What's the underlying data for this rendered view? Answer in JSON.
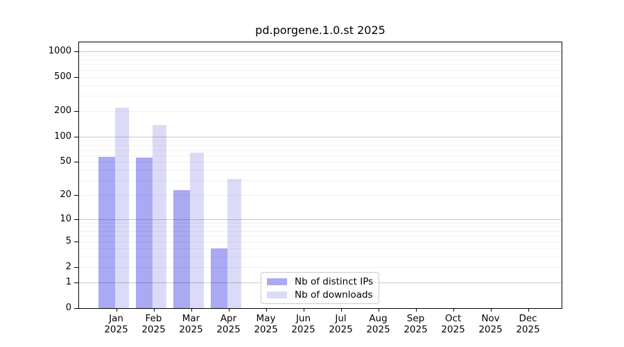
{
  "title": "pd.porgene.1.0.st 2025",
  "chart_data": {
    "type": "bar",
    "title": "pd.porgene.1.0.st 2025",
    "categories": [
      "Jan 2025",
      "Feb 2025",
      "Mar 2025",
      "Apr 2025",
      "May 2025",
      "Jun 2025",
      "Jul 2025",
      "Aug 2025",
      "Sep 2025",
      "Oct 2025",
      "Nov 2025",
      "Dec 2025"
    ],
    "series": [
      {
        "name": "Nb of distinct IPs",
        "color": "#a9a9f4",
        "values": [
          58,
          57,
          23,
          4,
          0,
          0,
          0,
          0,
          0,
          0,
          0,
          0
        ]
      },
      {
        "name": "Nb of downloads",
        "color": "#dbdbf8",
        "values": [
          220,
          136,
          64,
          31,
          0,
          0,
          0,
          0,
          0,
          0,
          0,
          0
        ]
      }
    ],
    "xlabel": "",
    "ylabel": "",
    "yscale": "log10(1+x)",
    "y_ticks": [
      0,
      1,
      2,
      5,
      10,
      20,
      50,
      100,
      200,
      500,
      1000
    ],
    "ylim": [
      0,
      1272
    ],
    "grid": "horizontal; faint lines at 2-9 per decade; decade lines 1,10,100,1000 emphasized; gridlines drawn over bars",
    "legend_position": "inside lower center"
  }
}
